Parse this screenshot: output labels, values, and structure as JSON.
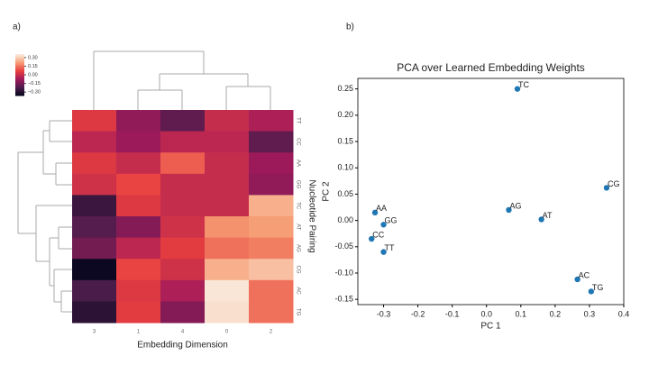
{
  "panel_labels": [
    "a)",
    "b)"
  ],
  "chart_data": [
    {
      "type": "heatmap",
      "xlabel": "Embedding Dimension",
      "ylabel": "Nucleotide Pairing",
      "x_categories": [
        "3",
        "1",
        "4",
        "0",
        "2"
      ],
      "y_categories": [
        "TT",
        "CC",
        "AA",
        "GG",
        "TC",
        "AT",
        "AG",
        "CG",
        "AC",
        "TG"
      ],
      "values": [
        [
          0.05,
          -0.1,
          -0.18,
          0.0,
          -0.05
        ],
        [
          -0.02,
          -0.08,
          -0.02,
          -0.02,
          -0.18
        ],
        [
          0.05,
          0.0,
          0.12,
          0.0,
          -0.08
        ],
        [
          0.02,
          0.08,
          0.0,
          0.0,
          -0.1
        ],
        [
          -0.25,
          0.05,
          0.0,
          0.0,
          0.25
        ],
        [
          -0.2,
          -0.12,
          0.02,
          0.2,
          0.22
        ],
        [
          -0.15,
          -0.02,
          0.06,
          0.15,
          0.17
        ],
        [
          -0.34,
          0.08,
          0.02,
          0.25,
          0.28
        ],
        [
          -0.22,
          0.05,
          -0.05,
          0.35,
          0.15
        ],
        [
          -0.28,
          0.06,
          -0.12,
          0.34,
          0.15
        ]
      ],
      "zlim": [
        -0.36,
        0.36
      ],
      "zticks": [
        {
          "value": 0.3,
          "label": "0.30"
        },
        0.15,
        {
          "value": 0,
          "label": "0.00"
        },
        {
          "value": -0.15,
          "label": "−0.15"
        },
        {
          "value": -0.3,
          "label": "−0.30"
        }
      ],
      "colormap": [
        "#03051a",
        "#4c1d4b",
        "#a11a5b",
        "#e83f3f",
        "#f69c73",
        "#faebdd"
      ]
    },
    {
      "type": "scatter",
      "title": "PCA over Learned Embedding Weights",
      "xlabel": "PC 1",
      "ylabel": "PC 2",
      "labels": [
        "TC",
        "CG",
        "AG",
        "AT",
        "AA",
        "GG",
        "CC",
        "TT",
        "AC",
        "TG"
      ],
      "x": [
        0.09,
        0.35,
        0.065,
        0.16,
        -0.325,
        -0.3,
        -0.335,
        -0.3,
        0.265,
        0.305
      ],
      "values": [
        0.25,
        0.062,
        0.02,
        0.002,
        0.015,
        -0.008,
        -0.035,
        -0.06,
        -0.112,
        -0.135
      ],
      "color": "#1f77b4",
      "xlim": [
        -0.375,
        0.4
      ],
      "xticks": [
        -0.3,
        -0.2,
        -0.1,
        {
          "value": 0,
          "label": "0.0"
        },
        0.1,
        0.2,
        0.3,
        0.4
      ],
      "ylim": [
        -0.16,
        0.27
      ],
      "yticks": [
        -0.15,
        {
          "value": -0.1,
          "label": "-0.10"
        },
        -0.05,
        {
          "value": 0,
          "label": "0.00"
        },
        0.05,
        {
          "value": 0.1,
          "label": "0.10"
        },
        0.15,
        {
          "value": 0.2,
          "label": "0.20"
        },
        0.25
      ]
    }
  ]
}
